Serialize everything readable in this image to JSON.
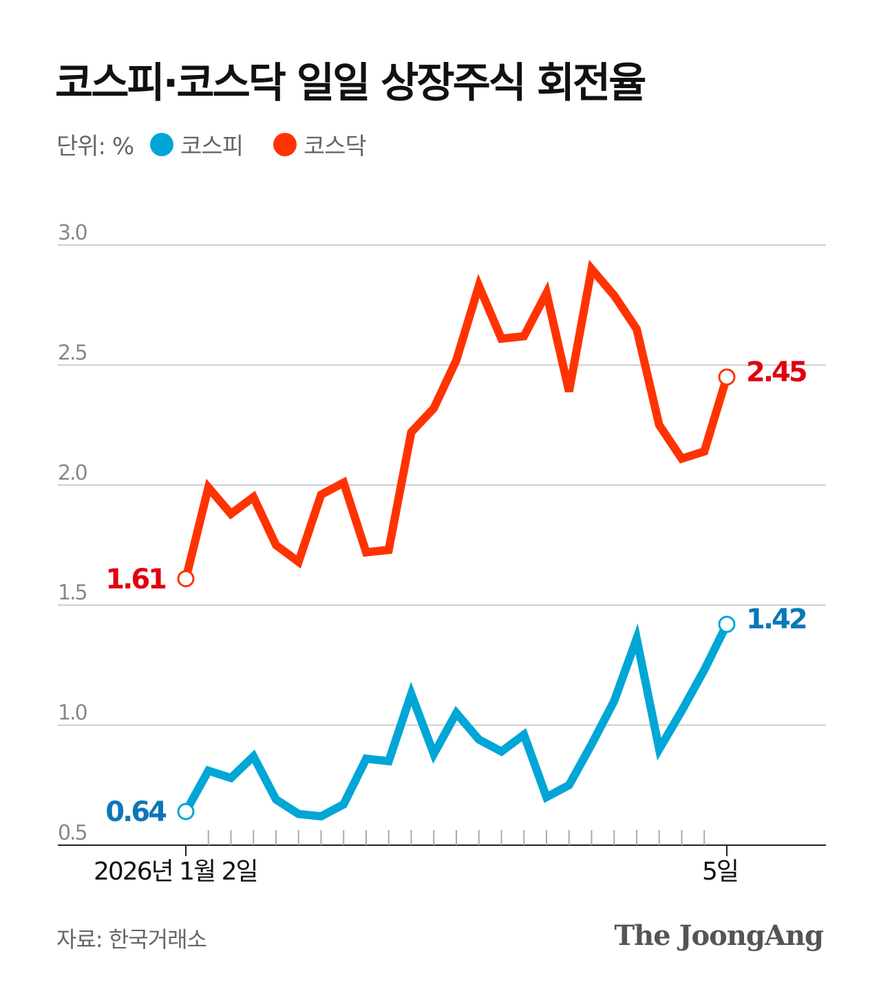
{
  "title": "코스피·코스닥 일일 상장주식 회전율",
  "unit_label": "단위: %",
  "source": "자료: 한국거래소",
  "logo": "The JoongAng",
  "chart_data": {
    "type": "line",
    "title": "코스피·코스닥 일일 상장주식 회전율",
    "ylabel": "",
    "xlabel": "",
    "ylim": [
      0.5,
      3.0
    ],
    "yticks": [
      "0.5",
      "1.0",
      "1.5",
      "2.0",
      "2.5",
      "3.0"
    ],
    "grid": true,
    "legend_placement": "top-left",
    "x_tick_labels": [
      {
        "index": 0,
        "label": "2026년 1월 2일"
      },
      {
        "index": 24,
        "label": "5일"
      }
    ],
    "point_count": 25,
    "series": [
      {
        "name": "코스피",
        "color": "#00a6d6",
        "label_color": "#0a78b8",
        "values": [
          0.64,
          0.81,
          0.78,
          0.87,
          0.69,
          0.63,
          0.62,
          0.67,
          0.86,
          0.85,
          1.13,
          0.88,
          1.05,
          0.94,
          0.89,
          0.96,
          0.7,
          0.75,
          0.92,
          1.1,
          1.36,
          0.9,
          1.06,
          1.23,
          1.42
        ],
        "start_label": "0.64",
        "end_label": "1.42"
      },
      {
        "name": "코스닥",
        "color": "#ff3300",
        "label_color": "#e0000f",
        "values": [
          1.61,
          1.99,
          1.88,
          1.95,
          1.75,
          1.68,
          1.96,
          2.01,
          1.72,
          1.73,
          2.22,
          2.32,
          2.52,
          2.83,
          2.61,
          2.62,
          2.8,
          2.39,
          2.9,
          2.79,
          2.65,
          2.25,
          2.11,
          2.14,
          2.45
        ],
        "start_label": "1.61",
        "end_label": "2.45"
      }
    ]
  }
}
